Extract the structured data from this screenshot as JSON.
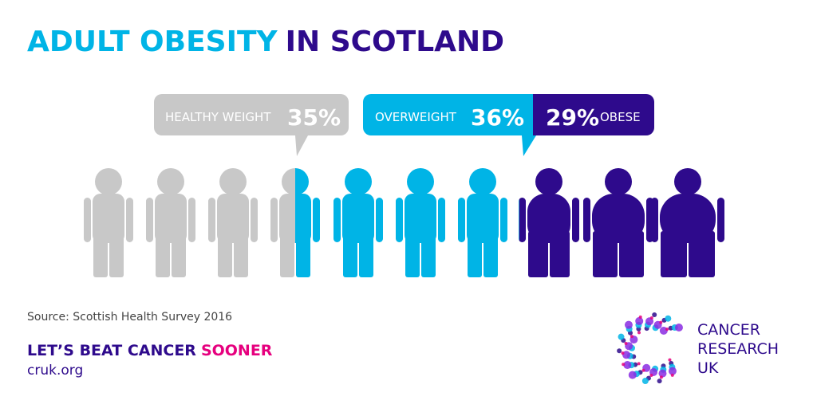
{
  "title": {
    "part1": "ADULT OBESITY",
    "part2": "IN SCOTLAND"
  },
  "segments": [
    {
      "label": "HEALTHY WEIGHT",
      "value": 35,
      "value_label": "35%",
      "color": "#c8c8c8"
    },
    {
      "label": "OVERWEIGHT",
      "value": 36,
      "value_label": "36%",
      "color": "#00b4e6"
    },
    {
      "label": "OBESE",
      "value": 29,
      "value_label": "29%",
      "color": "#2e0a8c"
    }
  ],
  "source": "Source: Scottish Health Survey 2016",
  "footer": {
    "slogan1": "LET’S BEAT CANCER",
    "slogan2": "SOONER",
    "url": "cruk.org"
  },
  "logo": {
    "line1": "CANCER",
    "line2": "RESEARCH",
    "line3": "UK"
  }
}
